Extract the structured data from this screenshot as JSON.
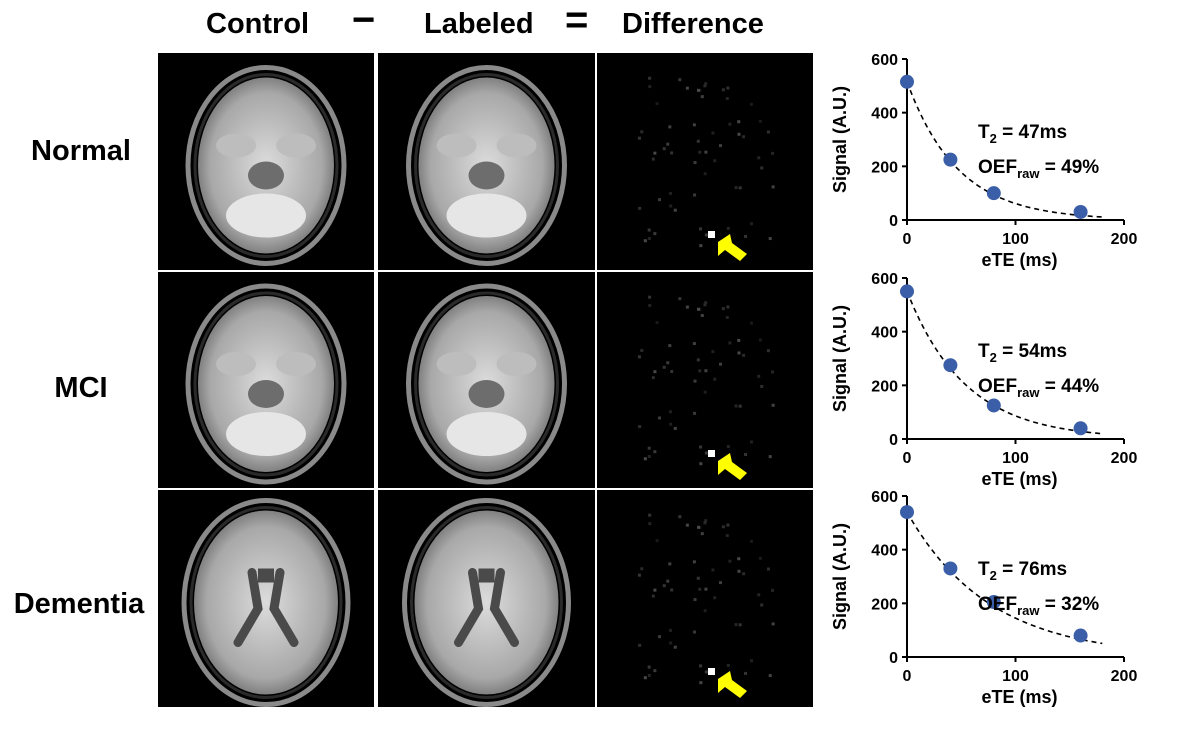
{
  "headers": {
    "control": "Control",
    "minus": "−",
    "labeled": "Labeled",
    "equals": "=",
    "difference": "Difference"
  },
  "rows": [
    {
      "label": "Normal",
      "t2": "47ms",
      "oef": "49%"
    },
    {
      "label": "MCI",
      "t2": "54ms",
      "oef": "44%"
    },
    {
      "label": "Dementia",
      "t2": "76ms",
      "oef": "32%"
    }
  ],
  "annotation": {
    "t2_prefix": "T",
    "t2_sub": "2",
    "oef_prefix": "OEF",
    "oef_sub": "raw",
    "eq": " = "
  },
  "colors": {
    "point": "#3a5fa8",
    "arrow": "#ffff00",
    "panel_bg": "#000000"
  },
  "chart_data": [
    {
      "type": "scatter",
      "xlabel": "eTE (ms)",
      "ylabel": "Signal (A.U.)",
      "xlim": [
        0,
        200
      ],
      "ylim": [
        0,
        600
      ],
      "xticks": [
        0,
        100,
        200
      ],
      "yticks": [
        0,
        200,
        400,
        600
      ],
      "points": [
        {
          "x": 0,
          "y": 515
        },
        {
          "x": 40,
          "y": 225
        },
        {
          "x": 80,
          "y": 100
        },
        {
          "x": 160,
          "y": 30
        }
      ],
      "fit": {
        "type": "exponential",
        "a": 515,
        "tau": 47,
        "x_end": 180
      }
    },
    {
      "type": "scatter",
      "xlabel": "eTE (ms)",
      "ylabel": "Signal (A.U.)",
      "xlim": [
        0,
        200
      ],
      "ylim": [
        0,
        600
      ],
      "xticks": [
        0,
        100,
        200
      ],
      "yticks": [
        0,
        200,
        400,
        600
      ],
      "points": [
        {
          "x": 0,
          "y": 550
        },
        {
          "x": 40,
          "y": 275
        },
        {
          "x": 80,
          "y": 125
        },
        {
          "x": 160,
          "y": 40
        }
      ],
      "fit": {
        "type": "exponential",
        "a": 550,
        "tau": 54,
        "x_end": 180
      }
    },
    {
      "type": "scatter",
      "xlabel": "eTE (ms)",
      "ylabel": "Signal (A.U.)",
      "xlim": [
        0,
        200
      ],
      "ylim": [
        0,
        600
      ],
      "xticks": [
        0,
        100,
        200
      ],
      "yticks": [
        0,
        200,
        400,
        600
      ],
      "points": [
        {
          "x": 0,
          "y": 540
        },
        {
          "x": 40,
          "y": 330
        },
        {
          "x": 80,
          "y": 205
        },
        {
          "x": 160,
          "y": 80
        }
      ],
      "fit": {
        "type": "exponential",
        "a": 540,
        "tau": 76,
        "x_end": 180
      }
    }
  ]
}
